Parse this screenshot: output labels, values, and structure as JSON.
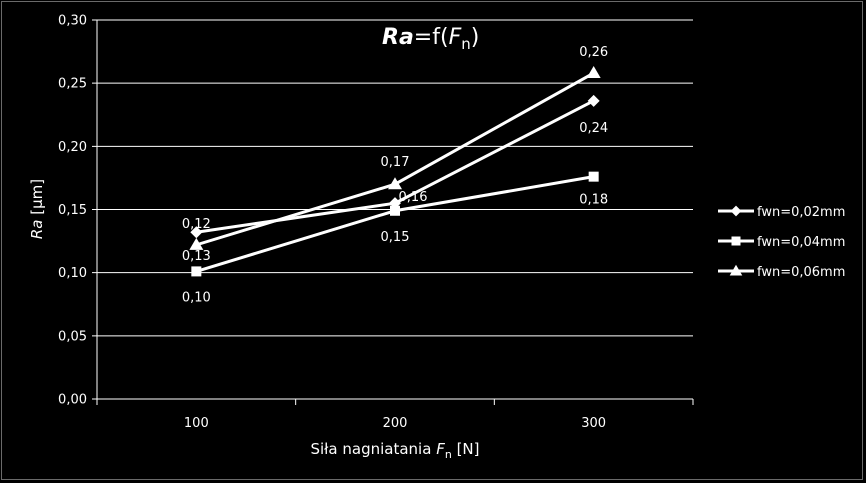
{
  "chart_data": {
    "type": "line",
    "title": {
      "main_italic": "Ra",
      "main_rest": "=f(",
      "f_italic": "F",
      "sub": "n",
      "close": ")"
    },
    "xlabel": {
      "prefix": "Siła nagniatania ",
      "italic": "F",
      "sub": "n",
      "suffix": " [N]"
    },
    "ylabel": {
      "italic": "Ra",
      "rest": " [µm]"
    },
    "categories": [
      "100",
      "200",
      "300"
    ],
    "y_ticks": [
      "0,00",
      "0,05",
      "0,10",
      "0,15",
      "0,20",
      "0,25",
      "0,30"
    ],
    "ylim": [
      0,
      0.3
    ],
    "grid": true,
    "legend_position": "right",
    "series": [
      {
        "name": "fwn=0,02mm",
        "marker": "diamond",
        "values": [
          0.132,
          0.155,
          0.236
        ],
        "labels": [
          "0,13",
          "0,16",
          "0,24"
        ]
      },
      {
        "name": "fwn=0,04mm",
        "marker": "square",
        "values": [
          0.101,
          0.149,
          0.176
        ],
        "labels": [
          "0,10",
          "0,15",
          "0,18"
        ]
      },
      {
        "name": "fwn=0,06mm",
        "marker": "triangle",
        "values": [
          0.122,
          0.17,
          0.258
        ],
        "labels": [
          "0,12",
          "0,17",
          "0,26"
        ]
      }
    ]
  }
}
